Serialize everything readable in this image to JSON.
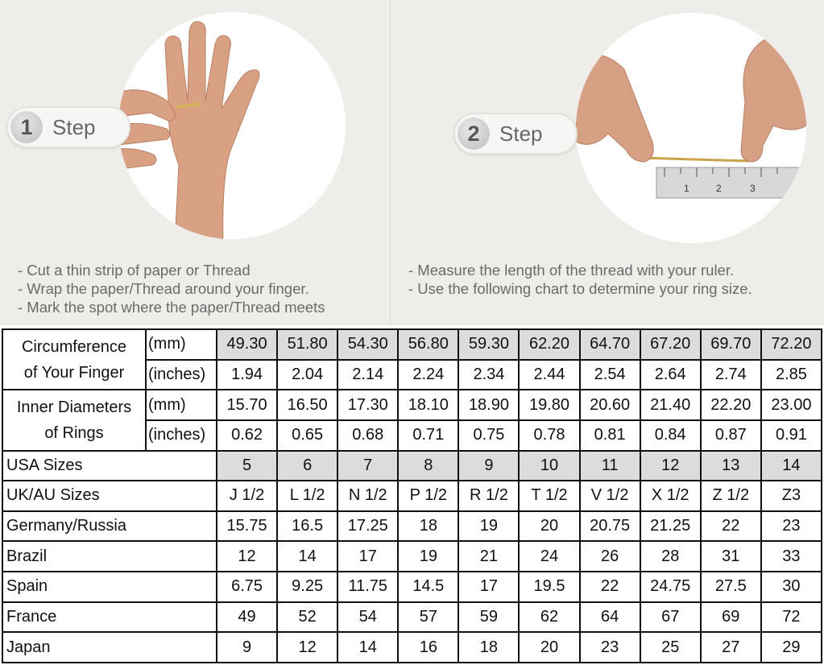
{
  "steps": [
    {
      "number": "1",
      "label": "Step",
      "bullets": [
        "-  Cut a thin strip of paper or Thread",
        "-  Wrap the paper/Thread around your finger.",
        "-  Mark the spot where the paper/Thread meets"
      ]
    },
    {
      "number": "2",
      "label": "Step",
      "bullets": [
        "-  Measure the length of the thread with your ruler.",
        "-  Use the following chart to determine your ring size."
      ]
    }
  ],
  "ruler": {
    "marks": [
      "1",
      "2",
      "3"
    ]
  },
  "colors": {
    "highlight_row": "#dcdcdc",
    "background": "#efedea",
    "border": "#111111"
  },
  "table": {
    "circumference": {
      "label_1": "Circumference",
      "label_2": "of Your Finger",
      "unit_mm": "(mm)",
      "unit_in": "(inches)",
      "mm": [
        "49.30",
        "51.80",
        "54.30",
        "56.80",
        "59.30",
        "62.20",
        "64.70",
        "67.20",
        "69.70",
        "72.20"
      ],
      "inches": [
        "1.94",
        "2.04",
        "2.14",
        "2.24",
        "2.34",
        "2.44",
        "2.54",
        "2.64",
        "2.74",
        "2.85"
      ]
    },
    "inner_diameter": {
      "label_1": "Inner Diameters",
      "label_2": "of Rings",
      "unit_mm": "(mm)",
      "unit_in": "(inches)",
      "mm": [
        "15.70",
        "16.50",
        "17.30",
        "18.10",
        "18.90",
        "19.80",
        "20.60",
        "21.40",
        "22.20",
        "23.00"
      ],
      "inches": [
        "0.62",
        "0.65",
        "0.68",
        "0.71",
        "0.75",
        "0.78",
        "0.81",
        "0.84",
        "0.87",
        "0.91"
      ]
    },
    "rows": [
      {
        "label": "USA Sizes",
        "values": [
          "5",
          "6",
          "7",
          "8",
          "9",
          "10",
          "11",
          "12",
          "13",
          "14"
        ],
        "highlight": true
      },
      {
        "label": "UK/AU Sizes",
        "values": [
          "J 1/2",
          "L 1/2",
          "N 1/2",
          "P 1/2",
          "R 1/2",
          "T 1/2",
          "V 1/2",
          "X 1/2",
          "Z 1/2",
          "Z3"
        ]
      },
      {
        "label": "Germany/Russia",
        "values": [
          "15.75",
          "16.5",
          "17.25",
          "18",
          "19",
          "20",
          "20.75",
          "21.25",
          "22",
          "23"
        ]
      },
      {
        "label": "Brazil",
        "values": [
          "12",
          "14",
          "17",
          "19",
          "21",
          "24",
          "26",
          "28",
          "31",
          "33"
        ]
      },
      {
        "label": "Spain",
        "values": [
          "6.75",
          "9.25",
          "11.75",
          "14.5",
          "17",
          "19.5",
          "22",
          "24.75",
          "27.5",
          "30"
        ]
      },
      {
        "label": "France",
        "values": [
          "49",
          "52",
          "54",
          "57",
          "59",
          "62",
          "64",
          "67",
          "69",
          "72"
        ]
      },
      {
        "label": "Japan",
        "values": [
          "9",
          "12",
          "14",
          "16",
          "18",
          "20",
          "23",
          "25",
          "27",
          "29"
        ]
      }
    ]
  }
}
